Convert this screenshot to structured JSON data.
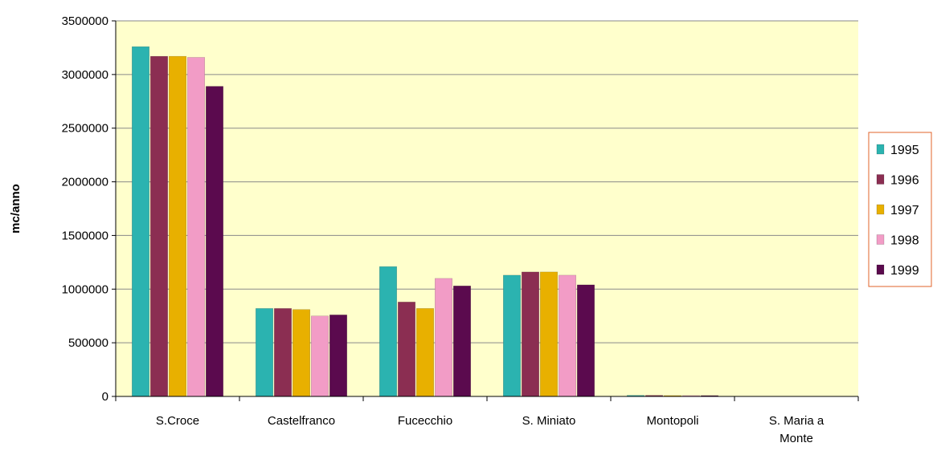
{
  "chart_data": {
    "type": "bar",
    "title": "",
    "xlabel": "",
    "ylabel": "mc/anno",
    "ylim": [
      0,
      3500000
    ],
    "yticks": [
      0,
      500000,
      1000000,
      1500000,
      2000000,
      2500000,
      3000000,
      3500000
    ],
    "categories": [
      "S.Croce",
      "Castelfranco",
      "Fucecchio",
      "S. Miniato",
      "Montopoli",
      "S. Maria a Monte"
    ],
    "grid": true,
    "legend_position": "right",
    "plot_background": "#FFFFCC",
    "series": [
      {
        "name": "1995",
        "color": "#2BB3B0",
        "values": [
          3260000,
          820000,
          1210000,
          1130000,
          10000,
          0
        ]
      },
      {
        "name": "1996",
        "color": "#8B2E52",
        "values": [
          3170000,
          820000,
          880000,
          1160000,
          10000,
          0
        ]
      },
      {
        "name": "1997",
        "color": "#E8B000",
        "values": [
          3170000,
          810000,
          820000,
          1160000,
          8000,
          0
        ]
      },
      {
        "name": "1998",
        "color": "#F29CC6",
        "values": [
          3160000,
          750000,
          1100000,
          1130000,
          8000,
          0
        ]
      },
      {
        "name": "1999",
        "color": "#5B0A4E",
        "values": [
          2890000,
          760000,
          1030000,
          1040000,
          8000,
          0
        ]
      }
    ]
  }
}
